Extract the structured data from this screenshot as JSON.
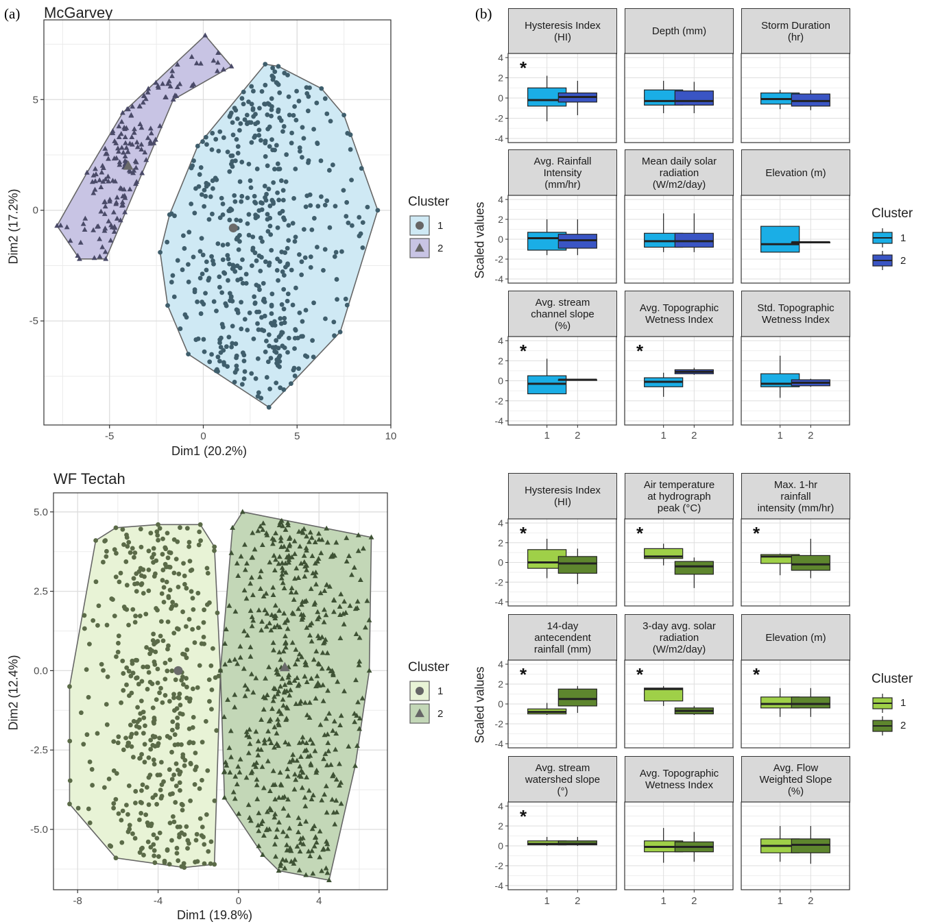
{
  "panels": {
    "a": "(a)",
    "b": "(b)"
  },
  "legend": {
    "title": "Cluster",
    "labels": [
      "1",
      "2"
    ]
  },
  "box_ylabel": "Scaled values",
  "chart_data": [
    {
      "type": "scatter",
      "title": "McGarvey",
      "xlabel": "Dim1 (20.2%)",
      "ylabel": "Dim2 (17.2%)",
      "xlim": [
        -8.5,
        10
      ],
      "ylim": [
        -9.7,
        8.6
      ],
      "xticks": [
        -5,
        0,
        5,
        10
      ],
      "xtick_labels": [
        "-5",
        "0",
        "5",
        "10"
      ],
      "yticks": [
        -5,
        0,
        5
      ],
      "ytick_labels": [
        "-5",
        "0",
        "5"
      ],
      "grid": true,
      "legend_position": "right",
      "clusters": [
        {
          "name": "1",
          "marker": "circle",
          "fill": "#cfe9f4",
          "point": "#3f5e6c",
          "hull": [
            [
              -2.3,
              -1.9
            ],
            [
              -1.9,
              -4.3
            ],
            [
              -0.8,
              -6.5
            ],
            [
              3.5,
              -8.9
            ],
            [
              7.3,
              -5.5
            ],
            [
              9.3,
              0.0
            ],
            [
              7.5,
              4.3
            ],
            [
              6.3,
              5.5
            ],
            [
              4.0,
              6.5
            ],
            [
              3.3,
              6.6
            ],
            [
              -0.3,
              2.9
            ],
            [
              -1.8,
              -0.2
            ]
          ],
          "centroid": [
            1.6,
            -0.8
          ]
        },
        {
          "name": "2",
          "marker": "triangle",
          "fill": "#c8c4e4",
          "point": "#4a4a68",
          "hull": [
            [
              -7.8,
              -0.7
            ],
            [
              -6.6,
              -2.2
            ],
            [
              -5.2,
              -2.2
            ],
            [
              -1.6,
              5.0
            ],
            [
              1.5,
              6.5
            ],
            [
              0.1,
              7.9
            ],
            [
              -4.3,
              4.4
            ],
            [
              -6.2,
              1.7
            ]
          ],
          "centroid": [
            -4.0,
            2.0
          ]
        }
      ]
    },
    {
      "type": "scatter",
      "title": "WF Tectah",
      "xlabel": "Dim1 (19.8%)",
      "ylabel": "Dim2 (12.4%)",
      "xlim": [
        -9.2,
        7.4
      ],
      "ylim": [
        -6.9,
        5.6
      ],
      "xticks": [
        -8,
        -4,
        0,
        4
      ],
      "xtick_labels": [
        "-8",
        "-4",
        "0",
        "4"
      ],
      "yticks": [
        -5,
        -2.5,
        0,
        2.5,
        5
      ],
      "ytick_labels": [
        "-5.0",
        "-2.5",
        "0.0",
        "2.5",
        "5.0"
      ],
      "grid": true,
      "legend_position": "right",
      "clusters": [
        {
          "name": "1",
          "marker": "circle",
          "fill": "#e8f3d6",
          "point": "#5b6b48",
          "hull": [
            [
              -8.4,
              -4.2
            ],
            [
              -8.4,
              -0.5
            ],
            [
              -7.1,
              4.1
            ],
            [
              -6.1,
              4.5
            ],
            [
              -4.0,
              4.6
            ],
            [
              -1.9,
              4.6
            ],
            [
              -1.2,
              3.9
            ],
            [
              -0.9,
              0.0
            ],
            [
              -1.2,
              -6.1
            ],
            [
              -2.7,
              -6.2
            ],
            [
              -6.1,
              -5.9
            ]
          ],
          "centroid": [
            -3.0,
            0.0
          ]
        },
        {
          "name": "2",
          "marker": "triangle",
          "fill": "#c3d7b7",
          "point": "#3e5234",
          "hull": [
            [
              -0.7,
              -4.0
            ],
            [
              -0.9,
              0.0
            ],
            [
              -0.3,
              4.5
            ],
            [
              0.2,
              5.0
            ],
            [
              6.6,
              4.2
            ],
            [
              6.5,
              0.0
            ],
            [
              5.8,
              -3.0
            ],
            [
              4.5,
              -6.6
            ],
            [
              2.0,
              -6.3
            ],
            [
              1.2,
              -5.8
            ]
          ],
          "centroid": [
            2.3,
            0.1
          ]
        }
      ]
    },
    {
      "type": "box",
      "site": "McGarvey",
      "ylabel": "Scaled values",
      "ylim": [
        -4,
        4
      ],
      "yticks": [
        -4,
        -2,
        0,
        2,
        4
      ],
      "categories": [
        "1",
        "2"
      ],
      "colors": {
        "1": "#1aaee6",
        "2": "#3a55c4"
      },
      "facets": [
        {
          "label": "Hysteresis Index (HI)",
          "strip": "Hysteresis Index\n(HI)",
          "sig": true,
          "boxes": [
            {
              "min": -2.3,
              "q1": -0.8,
              "median": -0.2,
              "q3": 1.0,
              "max": 2.2
            },
            {
              "min": -1.7,
              "q1": -0.4,
              "median": 0.1,
              "q3": 0.5,
              "max": 1.7
            }
          ]
        },
        {
          "label": "Depth (mm)",
          "strip": "Depth (mm)",
          "sig": false,
          "boxes": [
            {
              "min": -1.5,
              "q1": -0.7,
              "median": -0.3,
              "q3": 0.8,
              "max": 1.7
            },
            {
              "min": -1.5,
              "q1": -0.7,
              "median": -0.3,
              "q3": 0.7,
              "max": 1.6
            }
          ]
        },
        {
          "label": "Storm Duration (hr)",
          "strip": "Storm Duration\n(hr)",
          "sig": false,
          "boxes": [
            {
              "min": -1.1,
              "q1": -0.6,
              "median": -0.1,
              "q3": 0.5,
              "max": 0.8
            },
            {
              "min": -1.2,
              "q1": -0.8,
              "median": -0.3,
              "q3": 0.4,
              "max": 0.8
            }
          ]
        },
        {
          "label": "Avg. Rainfall Intensity (mm/hr)",
          "strip": "Avg. Rainfall\nIntensity\n(mm/hr)",
          "sig": false,
          "boxes": [
            {
              "min": -1.6,
              "q1": -1.1,
              "median": 0.1,
              "q3": 0.7,
              "max": 2.0
            },
            {
              "min": -1.6,
              "q1": -0.9,
              "median": -0.1,
              "q3": 0.5,
              "max": 2.0
            }
          ]
        },
        {
          "label": "Mean daily solar radiation (W/m2/day)",
          "strip": "Mean daily solar\nradiation\n(W/m2/day)",
          "sig": false,
          "boxes": [
            {
              "min": -1.3,
              "q1": -0.8,
              "median": -0.2,
              "q3": 0.6,
              "max": 2.6
            },
            {
              "min": -1.3,
              "q1": -0.8,
              "median": -0.2,
              "q3": 0.6,
              "max": 2.6
            }
          ]
        },
        {
          "label": "Elevation (m)",
          "strip": "Elevation (m)",
          "sig": false,
          "boxes": [
            {
              "min": -1.3,
              "q1": -1.3,
              "median": -0.5,
              "q3": 1.3,
              "max": 1.3
            },
            {
              "min": -0.3,
              "q1": -0.3,
              "median": -0.3,
              "q3": -0.3,
              "max": -0.3
            }
          ]
        },
        {
          "label": "Avg. stream channel slope (%)",
          "strip": "Avg. stream\nchannel slope\n(%)",
          "sig": true,
          "boxes": [
            {
              "min": -1.3,
              "q1": -1.3,
              "median": -0.3,
              "q3": 0.5,
              "max": 2.2
            },
            {
              "min": 0.1,
              "q1": 0.1,
              "median": 0.1,
              "q3": 0.1,
              "max": 0.1
            }
          ]
        },
        {
          "label": "Avg. Topographic Wetness Index",
          "strip": "Avg. Topographic\nWetness Index",
          "sig": true,
          "boxes": [
            {
              "min": -1.6,
              "q1": -0.6,
              "median": -0.1,
              "q3": 0.3,
              "max": 0.8
            },
            {
              "min": 0.6,
              "q1": 0.7,
              "median": 0.9,
              "q3": 1.1,
              "max": 1.3
            }
          ]
        },
        {
          "label": "Std. Topographic Wetness Index",
          "strip": "Std. Topographic\nWetness Index",
          "sig": false,
          "boxes": [
            {
              "min": -1.7,
              "q1": -0.6,
              "median": -0.3,
              "q3": 0.7,
              "max": 2.5
            },
            {
              "min": -0.6,
              "q1": -0.5,
              "median": -0.2,
              "q3": 0.1,
              "max": 0.2
            }
          ]
        }
      ]
    },
    {
      "type": "box",
      "site": "WF Tectah",
      "ylabel": "Scaled values",
      "ylim": [
        -4,
        4
      ],
      "yticks": [
        -4,
        -2,
        0,
        2,
        4
      ],
      "categories": [
        "1",
        "2"
      ],
      "colors": {
        "1": "#9fd048",
        "2": "#5e862e"
      },
      "facets": [
        {
          "label": "Hysteresis Index (HI)",
          "strip": "Hysteresis Index\n(HI)",
          "sig": true,
          "boxes": [
            {
              "min": -1.6,
              "q1": -0.6,
              "median": 0.0,
              "q3": 1.3,
              "max": 2.4
            },
            {
              "min": -2.2,
              "q1": -1.1,
              "median": -0.1,
              "q3": 0.6,
              "max": 1.4
            }
          ]
        },
        {
          "label": "Air temperature at hydrograph peak (°C)",
          "strip": "Air temperature\nat hydrograph\npeak (°C)",
          "sig": true,
          "boxes": [
            {
              "min": -0.3,
              "q1": 0.4,
              "median": 0.6,
              "q3": 1.4,
              "max": 1.9
            },
            {
              "min": -2.6,
              "q1": -1.2,
              "median": -0.4,
              "q3": 0.1,
              "max": 0.5
            }
          ]
        },
        {
          "label": "Max. 1-hr rainfall intensity (mm/hr)",
          "strip": "Max. 1-hr\nrainfall\nintensity (mm/hr)",
          "sig": true,
          "boxes": [
            {
              "min": -1.3,
              "q1": -0.1,
              "median": 0.6,
              "q3": 0.8,
              "max": 0.9
            },
            {
              "min": -1.6,
              "q1": -0.8,
              "median": -0.2,
              "q3": 0.7,
              "max": 2.4
            }
          ]
        },
        {
          "label": "14-day antecendent rainfall (mm)",
          "strip": "14-day\nantecendent\nrainfall (mm)",
          "sig": true,
          "boxes": [
            {
              "min": -1.1,
              "q1": -1.0,
              "median": -0.8,
              "q3": -0.5,
              "max": 0.1
            },
            {
              "min": -0.9,
              "q1": -0.2,
              "median": 0.5,
              "q3": 1.5,
              "max": 1.8
            }
          ]
        },
        {
          "label": "3-day avg. solar radiation (W/m2/day)",
          "strip": "3-day avg. solar\nradiation\n(W/m2/day)",
          "sig": true,
          "boxes": [
            {
              "min": -0.2,
              "q1": 0.3,
              "median": 1.5,
              "q3": 1.6,
              "max": 1.8
            },
            {
              "min": -1.1,
              "q1": -1.0,
              "median": -0.7,
              "q3": -0.4,
              "max": -0.2
            }
          ]
        },
        {
          "label": "Elevation (m)",
          "strip": "Elevation (m)",
          "sig": true,
          "boxes": [
            {
              "min": -1.3,
              "q1": -0.4,
              "median": 0.0,
              "q3": 0.7,
              "max": 1.6
            },
            {
              "min": -1.3,
              "q1": -0.4,
              "median": 0.0,
              "q3": 0.7,
              "max": 1.6
            }
          ]
        },
        {
          "label": "Avg. stream watershed slope (°)",
          "strip": "Avg. stream\nwatershed slope\n(°)",
          "sig": true,
          "boxes": [
            {
              "min": 0.0,
              "q1": 0.1,
              "median": 0.2,
              "q3": 0.5,
              "max": 0.9
            },
            {
              "min": 0.0,
              "q1": 0.1,
              "median": 0.2,
              "q3": 0.5,
              "max": 0.9
            }
          ]
        },
        {
          "label": "Avg. Topographic Wetness Index",
          "strip": "Avg. Topographic\nWetness Index",
          "sig": false,
          "boxes": [
            {
              "min": -1.7,
              "q1": -0.6,
              "median": -0.1,
              "q3": 0.5,
              "max": 1.8
            },
            {
              "min": -1.6,
              "q1": -0.6,
              "median": -0.1,
              "q3": 0.4,
              "max": 1.4
            }
          ]
        },
        {
          "label": "Avg. Flow Weighted Slope (%)",
          "strip": "Avg. Flow\nWeighted Slope\n(%)",
          "sig": false,
          "boxes": [
            {
              "min": -1.6,
              "q1": -0.7,
              "median": 0.0,
              "q3": 0.7,
              "max": 2.0
            },
            {
              "min": -1.8,
              "q1": -0.7,
              "median": 0.1,
              "q3": 0.7,
              "max": 2.0
            }
          ]
        }
      ]
    }
  ]
}
